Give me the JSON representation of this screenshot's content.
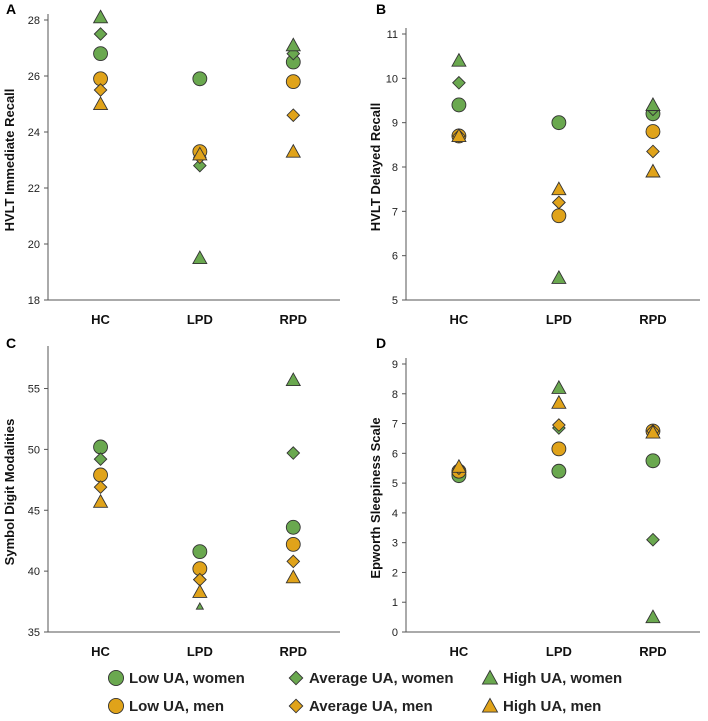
{
  "colors": {
    "women": "#6aa84f",
    "men": "#e0a31a",
    "outline": "#333333",
    "axis": "#555555"
  },
  "legend": {
    "items": [
      {
        "label": "Low UA, women",
        "shape": "circle",
        "group": "women"
      },
      {
        "label": "Average UA, women",
        "shape": "diamond",
        "group": "women"
      },
      {
        "label": "High UA, women",
        "shape": "triangle",
        "group": "women"
      },
      {
        "label": "Low UA, men",
        "shape": "circle",
        "group": "men"
      },
      {
        "label": "Average UA, men",
        "shape": "diamond",
        "group": "men"
      },
      {
        "label": "High UA, men",
        "shape": "triangle",
        "group": "men"
      }
    ]
  },
  "chart_data": [
    {
      "panel": "A",
      "type": "scatter",
      "ylabel": "HVLT Immediate Recall",
      "categories": [
        "HC",
        "LPD",
        "RPD"
      ],
      "ylim": [
        18,
        28
      ],
      "yticks": [
        18,
        20,
        22,
        24,
        26,
        28
      ],
      "series": [
        {
          "name": "Low UA, women",
          "values": [
            26.8,
            25.9,
            26.5
          ]
        },
        {
          "name": "Average UA, women",
          "values": [
            27.5,
            22.8,
            26.8
          ]
        },
        {
          "name": "High UA, women",
          "values": [
            28.1,
            19.5,
            27.1
          ]
        },
        {
          "name": "Low UA, men",
          "values": [
            25.9,
            23.3,
            25.8
          ]
        },
        {
          "name": "Average UA, men",
          "values": [
            25.5,
            23.1,
            24.6
          ]
        },
        {
          "name": "High UA, men",
          "values": [
            25.0,
            23.2,
            23.3
          ]
        }
      ]
    },
    {
      "panel": "B",
      "type": "scatter",
      "ylabel": "HVLT Delayed Recall",
      "categories": [
        "HC",
        "LPD",
        "RPD"
      ],
      "ylim": [
        5,
        11
      ],
      "yticks": [
        5,
        6,
        7,
        8,
        9,
        10,
        11
      ],
      "series": [
        {
          "name": "Low UA, women",
          "values": [
            9.4,
            9.0,
            9.2
          ]
        },
        {
          "name": "Average UA, women",
          "values": [
            9.9,
            7.2,
            9.3
          ]
        },
        {
          "name": "High UA, women",
          "values": [
            10.4,
            5.5,
            9.4
          ]
        },
        {
          "name": "Low UA, men",
          "values": [
            8.7,
            6.9,
            8.8
          ]
        },
        {
          "name": "Average UA, men",
          "values": [
            8.7,
            7.2,
            8.35
          ]
        },
        {
          "name": "High UA, men",
          "values": [
            8.7,
            7.5,
            7.9
          ]
        }
      ]
    },
    {
      "panel": "C",
      "type": "scatter",
      "ylabel": "Symbol Digit Modalities",
      "categories": [
        "HC",
        "LPD",
        "RPD"
      ],
      "ylim": [
        35,
        58
      ],
      "yticks": [
        35,
        40,
        45,
        50,
        55
      ],
      "series": [
        {
          "name": "Low UA, women",
          "values": [
            50.2,
            41.6,
            43.6
          ]
        },
        {
          "name": "Average UA, women",
          "values": [
            49.2,
            39.3,
            49.7
          ]
        },
        {
          "name": "High UA, women",
          "values": [
            null,
            37.1,
            55.7
          ]
        },
        {
          "name": "Low UA, men",
          "values": [
            47.9,
            40.2,
            42.2
          ]
        },
        {
          "name": "Average UA, men",
          "values": [
            46.9,
            39.3,
            40.8
          ]
        },
        {
          "name": "High UA, men",
          "values": [
            45.7,
            38.3,
            39.5
          ]
        }
      ]
    },
    {
      "panel": "D",
      "type": "scatter",
      "ylabel": "Epworth Sleepiness Scale",
      "categories": [
        "HC",
        "LPD",
        "RPD"
      ],
      "ylim": [
        0,
        9
      ],
      "yticks": [
        0,
        1,
        2,
        3,
        4,
        5,
        6,
        7,
        8,
        9
      ],
      "series": [
        {
          "name": "Low UA, women",
          "values": [
            5.25,
            5.4,
            5.75
          ]
        },
        {
          "name": "Average UA, women",
          "values": [
            5.4,
            6.85,
            3.1
          ]
        },
        {
          "name": "High UA, women",
          "values": [
            5.5,
            8.2,
            0.5
          ]
        },
        {
          "name": "Low UA, men",
          "values": [
            5.4,
            6.15,
            6.75
          ]
        },
        {
          "name": "Average UA, men",
          "values": [
            5.5,
            6.95,
            6.75
          ]
        },
        {
          "name": "High UA, men",
          "values": [
            5.55,
            7.7,
            6.7
          ]
        }
      ]
    }
  ]
}
